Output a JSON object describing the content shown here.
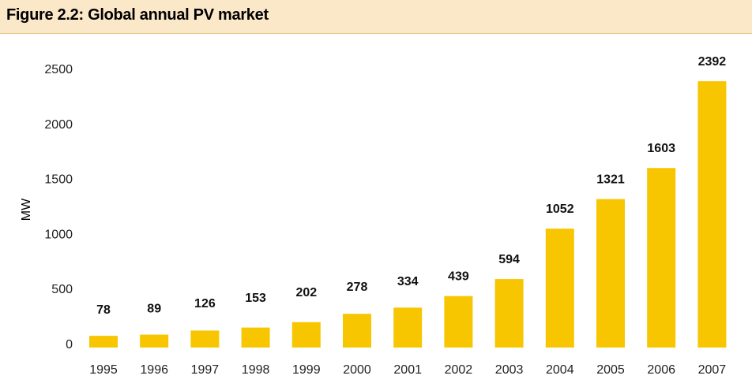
{
  "figure": {
    "title": "Figure 2.2: Global annual PV market"
  },
  "colors": {
    "bar": "#f7c600",
    "header_bg": "#fbe8c8",
    "header_border": "#e9c68a"
  },
  "chart_data": {
    "type": "bar",
    "title": "Figure 2.2: Global annual PV market",
    "xlabel": "",
    "ylabel": "MW",
    "categories": [
      "1995",
      "1996",
      "1997",
      "1998",
      "1999",
      "2000",
      "2001",
      "2002",
      "2003",
      "2004",
      "2005",
      "2006",
      "2007"
    ],
    "values": [
      78,
      89,
      126,
      153,
      202,
      278,
      334,
      439,
      594,
      1052,
      1321,
      1603,
      2392
    ],
    "data_labels": [
      "78",
      "89",
      "126",
      "153",
      "202",
      "278",
      "334",
      "439",
      "594",
      "1052",
      "1321",
      "1603",
      "2392"
    ],
    "yticks": [
      0,
      500,
      1000,
      1500,
      2000,
      2500
    ],
    "ylim": [
      0,
      2500
    ],
    "grid": false,
    "legend": "none"
  }
}
